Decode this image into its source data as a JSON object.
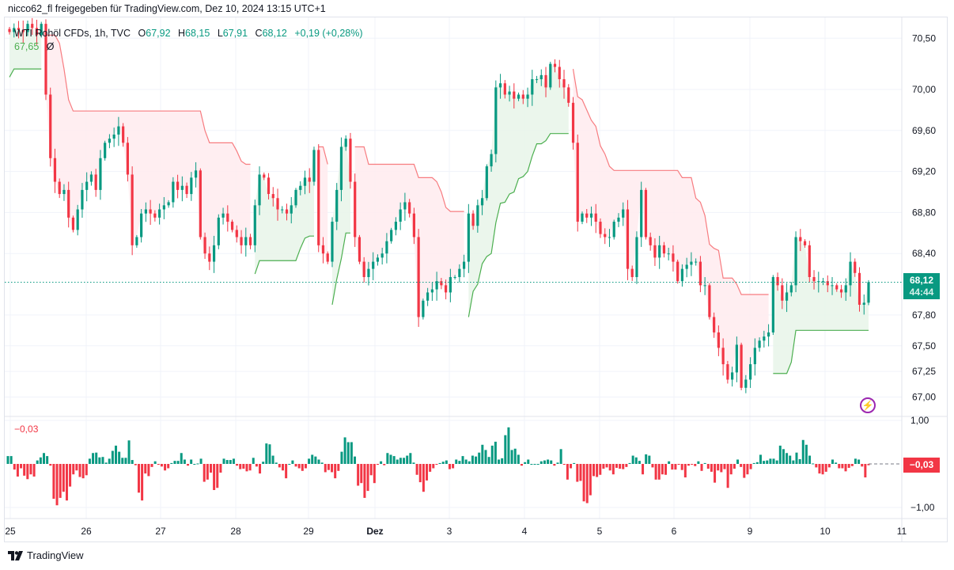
{
  "share_line": "nicco62_fl freigegeben für TradingView.com, Dez 10, 2024 13:15 UTC+1",
  "legend": {
    "symbol": "WTI Rohöl CFDs, 1h, TVC",
    "open_label": "O",
    "open": "67,92",
    "high_label": "H",
    "high": "68,15",
    "low_label": "L",
    "low": "67,91",
    "close_label": "C",
    "close": "68,12",
    "change": "+0,19 (+0,28%)",
    "indicator_value": "67,65",
    "indicator_icon": "Ø"
  },
  "price_label": {
    "value": "68,12",
    "countdown": "44:44"
  },
  "oscillator": {
    "legend_value": "−0,03",
    "label": "−0,03",
    "axis_ticks": [
      "1,00",
      "−1,00"
    ]
  },
  "footer": {
    "brand": "TradingView"
  },
  "icons": {
    "bolt": "lightning-icon",
    "logo": "tradingview-logo"
  },
  "colors": {
    "up": "#089981",
    "down": "#f23645",
    "stop_up": "#4caf50",
    "stop_down": "#f77c80",
    "fill_up": "#e8f5e9",
    "fill_down": "#ffebee",
    "accent": "#9c27b0"
  },
  "chart_data": {
    "type": "candlestick",
    "interval": "1h",
    "x_ticks": [
      "25",
      "26",
      "27",
      "28",
      "29",
      "Dez",
      "3",
      "4",
      "5",
      "6",
      "9",
      "10",
      "11"
    ],
    "y_ticks": [
      "70,50",
      "70,00",
      "69,60",
      "69,20",
      "68,80",
      "68,40",
      "67,80",
      "67,50",
      "67,25",
      "67,00"
    ],
    "ylim": [
      66.9,
      70.7
    ],
    "last_price": 68.12,
    "close": [
      70.56,
      70.6,
      70.58,
      70.56,
      70.64,
      70.6,
      70.53,
      70.64,
      69.95,
      69.33,
      69.1,
      68.98,
      69.02,
      68.75,
      68.63,
      68.83,
      69.02,
      69.1,
      69.17,
      69.02,
      69.33,
      69.48,
      69.52,
      69.56,
      69.64,
      69.48,
      69.17,
      68.48,
      68.56,
      68.79,
      68.83,
      68.79,
      68.75,
      68.83,
      68.87,
      68.9,
      69.1,
      69.02,
      69.06,
      68.98,
      69.14,
      69.21,
      68.56,
      68.4,
      68.32,
      68.48,
      68.75,
      68.79,
      68.71,
      68.63,
      68.56,
      68.48,
      68.56,
      68.48,
      68.87,
      69.17,
      69.14,
      68.98,
      68.94,
      68.83,
      68.83,
      68.79,
      68.87,
      69.02,
      69.06,
      69.14,
      69.1,
      69.41,
      68.48,
      68.4,
      68.32,
      68.71,
      69.02,
      69.44,
      69.52,
      69.1,
      68.56,
      68.32,
      68.17,
      68.25,
      68.32,
      68.36,
      68.4,
      68.52,
      68.63,
      68.71,
      68.83,
      68.9,
      68.79,
      68.56,
      67.78,
      67.94,
      68.02,
      68.05,
      68.13,
      68.09,
      68.02,
      68.17,
      68.17,
      68.25,
      68.32,
      68.79,
      68.67,
      68.87,
      68.94,
      69.25,
      69.37,
      70.02,
      70.06,
      69.95,
      69.98,
      69.91,
      69.95,
      69.91,
      69.95,
      70.1,
      70.1,
      70.14,
      70.02,
      70.25,
      70.22,
      70.1,
      70.02,
      69.87,
      69.48,
      68.71,
      68.79,
      68.75,
      68.79,
      68.71,
      68.59,
      68.56,
      68.56,
      68.71,
      68.75,
      68.83,
      68.25,
      68.17,
      68.56,
      69.02,
      68.56,
      68.48,
      68.36,
      68.48,
      68.4,
      68.4,
      68.32,
      68.13,
      68.25,
      68.29,
      68.32,
      68.32,
      68.09,
      68.09,
      67.78,
      67.63,
      67.48,
      67.32,
      67.17,
      67.24,
      67.51,
      67.09,
      67.17,
      67.32,
      67.48,
      67.55,
      67.59,
      67.63,
      68.17,
      68.09,
      67.94,
      68.02,
      68.09,
      68.56,
      68.52,
      68.48,
      68.17,
      68.13,
      68.13,
      68.13,
      68.09,
      68.09,
      68.05,
      68.02,
      68.09,
      68.32,
      68.21,
      67.9,
      67.92,
      68.12
    ],
    "stop_segments": [
      {
        "trend": "up",
        "values": [
          70.12,
          70.2,
          70.2,
          70.2,
          70.2,
          70.2,
          70.2,
          70.2
        ]
      },
      {
        "trend": "down",
        "values": [
          70.53,
          70.53,
          70.53,
          70.45,
          70.2,
          69.9,
          69.79,
          69.79,
          69.79,
          69.79,
          69.79,
          69.79,
          69.79,
          69.79,
          69.79,
          69.79,
          69.79,
          69.79,
          69.79,
          69.79,
          69.79,
          69.79,
          69.79,
          69.79,
          69.79,
          69.79,
          69.79,
          69.79,
          69.79,
          69.79,
          69.79,
          69.79,
          69.79,
          69.79,
          69.79,
          69.6,
          69.48,
          69.48,
          69.48,
          69.48,
          69.48,
          69.48,
          69.4,
          69.3,
          69.27,
          69.27
        ]
      },
      {
        "trend": "up",
        "values": [
          68.2,
          68.33,
          68.33,
          68.33,
          68.33,
          68.33,
          68.33,
          68.33,
          68.33,
          68.33,
          68.45,
          68.55,
          68.57,
          68.57
        ]
      },
      {
        "trend": "down",
        "values": [
          69.44,
          69.44,
          69.27
        ]
      },
      {
        "trend": "up",
        "values": [
          67.9,
          68.15,
          68.35,
          68.6,
          68.6
        ]
      },
      {
        "trend": "down",
        "values": [
          69.44,
          69.44,
          69.44,
          69.27,
          69.27,
          69.27,
          69.27,
          69.27,
          69.27,
          69.27,
          69.27,
          69.27,
          69.27,
          69.27,
          69.14,
          69.14,
          69.14,
          69.14,
          69.1,
          69.0,
          68.85,
          68.81,
          68.81,
          68.81,
          68.81
        ]
      },
      {
        "trend": "up",
        "values": [
          67.78,
          68.03,
          68.1,
          68.3,
          68.37,
          68.4,
          68.7,
          68.89,
          68.9,
          68.98,
          69.0,
          69.13,
          69.15,
          69.2,
          69.35,
          69.47,
          69.47,
          69.5,
          69.57,
          69.57,
          69.57,
          69.57,
          69.57
        ]
      },
      {
        "trend": "down",
        "values": [
          70.2,
          69.93,
          69.9,
          69.8,
          69.7,
          69.64,
          69.45,
          69.37,
          69.25,
          69.21,
          69.21,
          69.21,
          69.21,
          69.21,
          69.21,
          69.21,
          69.21,
          69.21,
          69.21,
          69.21,
          69.21,
          69.21,
          69.21,
          69.21,
          69.14,
          69.14,
          69.14,
          68.94,
          68.9,
          68.77,
          68.49,
          68.45,
          68.43,
          68.16,
          68.16,
          68.16,
          68.1,
          68.0,
          68.0,
          68.0,
          68.0,
          68.0,
          68.0,
          68.0
        ]
      },
      {
        "trend": "up",
        "values": [
          67.23,
          67.23,
          67.23,
          67.23,
          67.34,
          67.65,
          67.65,
          67.65,
          67.65,
          67.65,
          67.65,
          67.65,
          67.65,
          67.65,
          67.65,
          67.65,
          67.65,
          67.65,
          67.65,
          67.65,
          67.65,
          67.65
        ]
      }
    ],
    "oscillator_ylim": [
      -1.1,
      1.1
    ],
    "oscillator": [
      0.18,
      0.18,
      -0.13,
      -0.29,
      -0.1,
      -0.27,
      -0.35,
      -0.24,
      -0.29,
      0.08,
      0.15,
      0.25,
      0.18,
      -0.04,
      -0.8,
      -0.95,
      -0.78,
      -0.64,
      -0.84,
      -0.52,
      -0.24,
      -0.15,
      -0.3,
      -0.33,
      -0.26,
      0.12,
      0.25,
      0.26,
      0.15,
      0.16,
      0.03,
      0.12,
      0.3,
      0.42,
      0.28,
      0.14,
      0.14,
      0.54,
      0.09,
      -0.03,
      -0.66,
      -0.84,
      -0.22,
      -0.28,
      -0.07,
      0.06,
      -0.02,
      -0.06,
      -0.15,
      -0.1,
      0.02,
      0.07,
      0.07,
      0.25,
      0.1,
      -0.04,
      0.1,
      0,
      0.01,
      0.12,
      -0.41,
      -0.36,
      -0.2,
      -0.6,
      -0.55,
      -0.2,
      0.12,
      0.09,
      0.09,
      0.12,
      -0.04,
      -0.12,
      -0.11,
      -0.17,
      -0.15,
      0.14,
      -0.06,
      -0.22,
      0.05,
      0.47,
      0.45,
      0.19,
      0.03,
      -0.08,
      -0.15,
      -0.33,
      0,
      0.08,
      -0.06,
      -0.1,
      -0.16,
      -0.1,
      0.12,
      0.21,
      0.17,
      0.1,
      0.03,
      -0.19,
      -0.14,
      -0.19,
      -0.33,
      -0.16,
      0.28,
      0.61,
      0.5,
      0.5,
      0.17,
      -0.5,
      -0.44,
      -0.78,
      -0.62,
      -0.26,
      -0.44,
      -0.02,
      0.06,
      -0.03,
      0.25,
      0.21,
      0.18,
      0.1,
      0.14,
      0.14,
      0.19,
      0.25,
      0.03,
      -0.25,
      -0.42,
      -0.64,
      -0.38,
      -0.18,
      -0.1,
      -0.02,
      0.02,
      0.05,
      0.08,
      -0.12,
      -0.1,
      0.1,
      0.07,
      0.18,
      0.1,
      0.06,
      0.19,
      0.17,
      0.26,
      0.44,
      0.32,
      0.16,
      0.42,
      0.51,
      0.1,
      0.13,
      0.66,
      0.84,
      0.32,
      0.35,
      0.21,
      -0.04,
      0.04,
      0.1,
      0,
      0,
      0,
      0.06,
      0.08,
      0.1,
      0.08,
      -0.04,
      0.03,
      0.34,
      -0.02,
      -0.36,
      -0.1,
      0.02,
      -0.41,
      -0.39,
      -0.86,
      -0.9,
      -0.72,
      -0.28,
      -0.3,
      -0.25,
      -0.11,
      -0.08,
      -0.15,
      -0.24,
      -0.09,
      -0.11,
      -0.12,
      -0.07,
      0.02,
      0.19,
      0.15,
      0.07,
      -0.24,
      0.22,
      0.19,
      -0.08,
      -0.36,
      -0.36,
      -0.24,
      -0.25,
      0.06,
      -0.13,
      -0.13,
      -0.02,
      -0.14,
      -0.31,
      -0.04,
      -0.01,
      -0.05,
      0.06,
      -0.16,
      0.02,
      -0.11,
      -0.18,
      -0.43,
      -0.15,
      -0.19,
      -0.12,
      -0.55,
      -0.24,
      -0.11,
      0.1,
      -0.07,
      -0.32,
      -0.24,
      -0.12,
      0.02,
      0.04,
      0.21,
      0.07,
      0.08,
      0.12,
      0.12,
      0.08,
      0.42,
      0.34,
      0.25,
      0.19,
      0.08,
      0.26,
      0.11,
      0.55,
      0.44,
      0.19,
      0.01,
      -0.08,
      -0.22,
      -0.24,
      -0.18,
      -0.08,
      0.1,
      0.03,
      -0.1,
      -0.1,
      -0.17,
      -0.09,
      -0.05,
      0.12,
      0.1,
      -0.06,
      -0.31,
      -0.03
    ]
  }
}
